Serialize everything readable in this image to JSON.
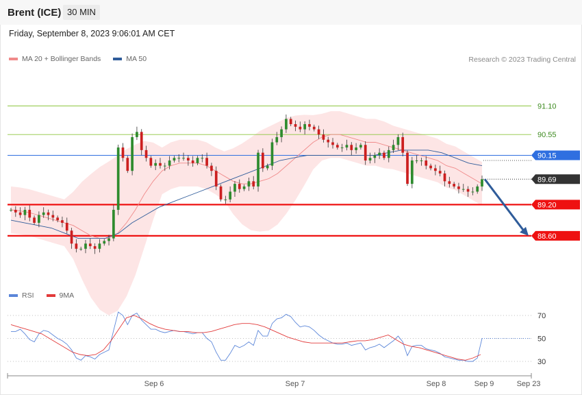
{
  "header": {
    "title": "Brent (ICE)",
    "timeframe": "30 MIN"
  },
  "datetime": "Friday, September 8, 2023 9:06:01 AM CET",
  "credit": "Research © 2023 Trading Central",
  "legend_main": [
    {
      "label": "MA 20 + Bollinger Bands",
      "color": "#f08a8a"
    },
    {
      "label": "MA 50",
      "color": "#2f5c9a"
    }
  ],
  "legend_rsi": [
    {
      "label": "RSI",
      "color": "#5b86d9"
    },
    {
      "label": "9MA",
      "color": "#e23a3a"
    }
  ],
  "chart_data": [
    {
      "type": "candlestick",
      "x_ticks": [
        "Sep 6",
        "Sep 7",
        "Sep 8",
        "Sep 9",
        "Sep 23"
      ],
      "ylim": [
        87.7,
        91.45
      ],
      "current_price": 89.69,
      "levels": [
        {
          "value": 91.1,
          "label": "91.10",
          "color": "#8dc63f",
          "kind": "line"
        },
        {
          "value": 90.55,
          "label": "90.55",
          "color": "#8dc63f",
          "kind": "line"
        },
        {
          "value": 90.15,
          "label": "90.15",
          "color": "#2f6fe0",
          "kind": "tag"
        },
        {
          "value": 89.69,
          "label": "89.69",
          "color": "#333333",
          "kind": "tag"
        },
        {
          "value": 89.2,
          "label": "89.20",
          "color": "#ee1111",
          "kind": "tag"
        },
        {
          "value": 88.6,
          "label": "88.60",
          "color": "#ee1111",
          "kind": "tag"
        }
      ],
      "forecast_arrow": {
        "from": 89.69,
        "to": 88.6
      },
      "close": [
        89.1,
        89.05,
        89.0,
        89.1,
        88.95,
        88.85,
        89.0,
        89.05,
        89.0,
        88.95,
        88.9,
        88.85,
        88.7,
        88.45,
        88.35,
        88.35,
        88.45,
        88.4,
        88.35,
        88.45,
        88.5,
        88.55,
        89.1,
        90.3,
        90.1,
        89.85,
        90.5,
        90.6,
        90.25,
        90.1,
        89.95,
        90.0,
        89.95,
        89.95,
        90.05,
        90.1,
        90.1,
        90.1,
        90.05,
        90.0,
        90.1,
        90.1,
        89.95,
        89.85,
        89.55,
        89.3,
        89.3,
        89.45,
        89.6,
        89.5,
        89.55,
        89.65,
        89.55,
        90.2,
        89.9,
        89.95,
        90.4,
        90.5,
        90.65,
        90.85,
        90.75,
        90.7,
        90.65,
        90.75,
        90.7,
        90.65,
        90.55,
        90.45,
        90.4,
        90.35,
        90.3,
        90.3,
        90.35,
        90.25,
        90.3,
        90.35,
        90.05,
        90.1,
        90.15,
        90.2,
        90.1,
        90.25,
        90.35,
        90.5,
        90.2,
        89.6,
        90.05,
        90.05,
        90.05,
        89.95,
        89.9,
        89.85,
        89.8,
        89.65,
        89.6,
        89.55,
        89.5,
        89.5,
        89.45,
        89.45,
        89.55,
        89.69
      ],
      "ma20": [
        89.1,
        89.08,
        89.05,
        89.0,
        88.95,
        88.9,
        88.85,
        88.8,
        88.7,
        88.6,
        88.55,
        88.55,
        88.65,
        88.85,
        89.1,
        89.4,
        89.65,
        89.85,
        89.95,
        90.0,
        90.0,
        90.0,
        89.95,
        89.85,
        89.75,
        89.65,
        89.6,
        89.6,
        89.65,
        89.7,
        89.8,
        89.95,
        90.1,
        90.25,
        90.4,
        90.5,
        90.55,
        90.55,
        90.5,
        90.45,
        90.4,
        90.4,
        90.35,
        90.3,
        90.25,
        90.2,
        90.15,
        90.1,
        90.05,
        89.95,
        89.9,
        89.8,
        89.7,
        89.6
      ],
      "ma50": [
        88.9,
        88.85,
        88.8,
        88.75,
        88.65,
        88.55,
        88.55,
        88.55,
        88.65,
        88.85,
        89.0,
        89.15,
        89.25,
        89.35,
        89.45,
        89.55,
        89.65,
        89.75,
        89.85,
        89.95,
        90.05,
        90.1,
        90.15,
        90.15,
        90.15,
        90.15,
        90.15,
        90.15,
        90.2,
        90.25,
        90.25,
        90.25,
        90.2,
        90.1,
        90.0,
        89.95
      ],
      "rsi": [
        56,
        56,
        58,
        54,
        49,
        47,
        54,
        57,
        56,
        53,
        50,
        48,
        45,
        40,
        33,
        31,
        35,
        34,
        32,
        36,
        38,
        40,
        57,
        73,
        70,
        62,
        70,
        72,
        66,
        62,
        58,
        58,
        56,
        55,
        56,
        57,
        56,
        56,
        55,
        54,
        55,
        55,
        50,
        47,
        38,
        31,
        31,
        37,
        44,
        42,
        44,
        47,
        44,
        57,
        52,
        52,
        63,
        67,
        68,
        71,
        69,
        64,
        60,
        61,
        60,
        57,
        53,
        50,
        48,
        46,
        45,
        45,
        46,
        44,
        45,
        46,
        40,
        42,
        43,
        45,
        42,
        45,
        48,
        52,
        47,
        35,
        43,
        44,
        44,
        41,
        40,
        39,
        37,
        34,
        33,
        32,
        31,
        31,
        30,
        30,
        33,
        50
      ],
      "rsi_ma": [
        62,
        60,
        58,
        56,
        54,
        50,
        46,
        42,
        38,
        36,
        35,
        36,
        40,
        48,
        58,
        68,
        70,
        67,
        63,
        60,
        58,
        57,
        56,
        56,
        55,
        55,
        56,
        58,
        60,
        62,
        63,
        63,
        62,
        60,
        57,
        54,
        51,
        49,
        47,
        46,
        46,
        46,
        46,
        46,
        47,
        48,
        48,
        49,
        51,
        53,
        49,
        45,
        43,
        42,
        40,
        38,
        36,
        34,
        32,
        31,
        33,
        36
      ],
      "rsi_levels": [
        70,
        50,
        30
      ]
    }
  ]
}
